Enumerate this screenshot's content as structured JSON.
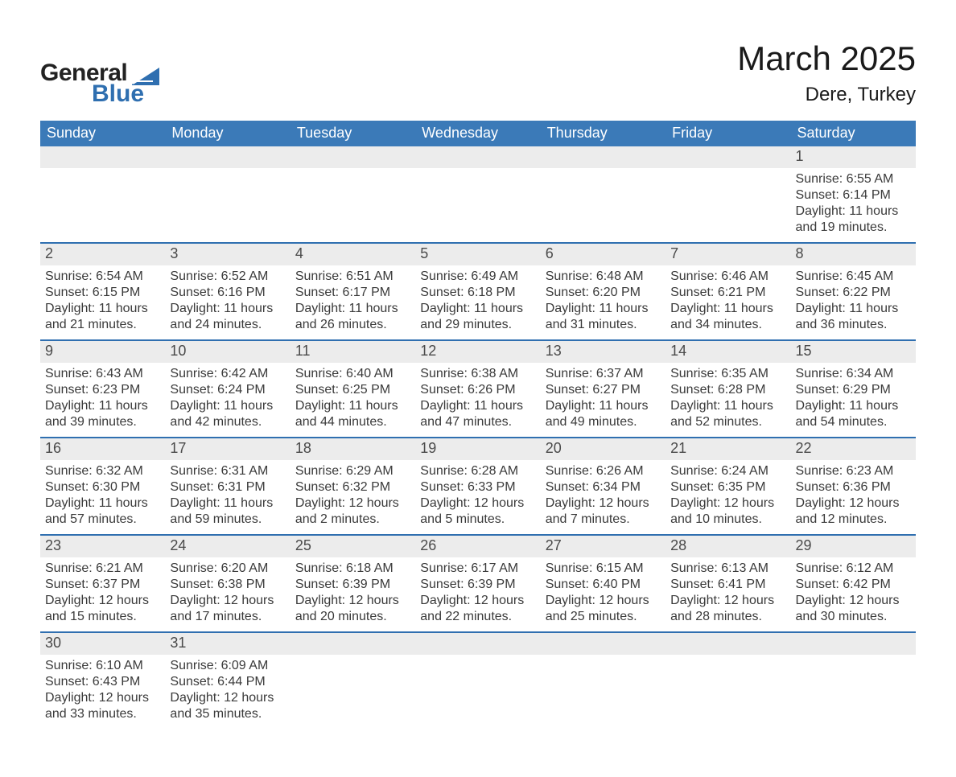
{
  "brand": {
    "word1": "General",
    "word2": "Blue",
    "accent_color": "#2f6fb0"
  },
  "title": "March 2025",
  "location": "Dere, Turkey",
  "colors": {
    "header_blue": "#3b7ab8",
    "row_separator": "#2f6fb0",
    "date_strip_bg": "#ececec",
    "background": "#ffffff",
    "text": "#2f2f2f"
  },
  "weekdays": [
    "Sunday",
    "Monday",
    "Tuesday",
    "Wednesday",
    "Thursday",
    "Friday",
    "Saturday"
  ],
  "weeks": [
    [
      null,
      null,
      null,
      null,
      null,
      null,
      {
        "d": "1",
        "sunrise": "Sunrise: 6:55 AM",
        "sunset": "Sunset: 6:14 PM",
        "dl1": "Daylight: 11 hours",
        "dl2": "and 19 minutes."
      }
    ],
    [
      {
        "d": "2",
        "sunrise": "Sunrise: 6:54 AM",
        "sunset": "Sunset: 6:15 PM",
        "dl1": "Daylight: 11 hours",
        "dl2": "and 21 minutes."
      },
      {
        "d": "3",
        "sunrise": "Sunrise: 6:52 AM",
        "sunset": "Sunset: 6:16 PM",
        "dl1": "Daylight: 11 hours",
        "dl2": "and 24 minutes."
      },
      {
        "d": "4",
        "sunrise": "Sunrise: 6:51 AM",
        "sunset": "Sunset: 6:17 PM",
        "dl1": "Daylight: 11 hours",
        "dl2": "and 26 minutes."
      },
      {
        "d": "5",
        "sunrise": "Sunrise: 6:49 AM",
        "sunset": "Sunset: 6:18 PM",
        "dl1": "Daylight: 11 hours",
        "dl2": "and 29 minutes."
      },
      {
        "d": "6",
        "sunrise": "Sunrise: 6:48 AM",
        "sunset": "Sunset: 6:20 PM",
        "dl1": "Daylight: 11 hours",
        "dl2": "and 31 minutes."
      },
      {
        "d": "7",
        "sunrise": "Sunrise: 6:46 AM",
        "sunset": "Sunset: 6:21 PM",
        "dl1": "Daylight: 11 hours",
        "dl2": "and 34 minutes."
      },
      {
        "d": "8",
        "sunrise": "Sunrise: 6:45 AM",
        "sunset": "Sunset: 6:22 PM",
        "dl1": "Daylight: 11 hours",
        "dl2": "and 36 minutes."
      }
    ],
    [
      {
        "d": "9",
        "sunrise": "Sunrise: 6:43 AM",
        "sunset": "Sunset: 6:23 PM",
        "dl1": "Daylight: 11 hours",
        "dl2": "and 39 minutes."
      },
      {
        "d": "10",
        "sunrise": "Sunrise: 6:42 AM",
        "sunset": "Sunset: 6:24 PM",
        "dl1": "Daylight: 11 hours",
        "dl2": "and 42 minutes."
      },
      {
        "d": "11",
        "sunrise": "Sunrise: 6:40 AM",
        "sunset": "Sunset: 6:25 PM",
        "dl1": "Daylight: 11 hours",
        "dl2": "and 44 minutes."
      },
      {
        "d": "12",
        "sunrise": "Sunrise: 6:38 AM",
        "sunset": "Sunset: 6:26 PM",
        "dl1": "Daylight: 11 hours",
        "dl2": "and 47 minutes."
      },
      {
        "d": "13",
        "sunrise": "Sunrise: 6:37 AM",
        "sunset": "Sunset: 6:27 PM",
        "dl1": "Daylight: 11 hours",
        "dl2": "and 49 minutes."
      },
      {
        "d": "14",
        "sunrise": "Sunrise: 6:35 AM",
        "sunset": "Sunset: 6:28 PM",
        "dl1": "Daylight: 11 hours",
        "dl2": "and 52 minutes."
      },
      {
        "d": "15",
        "sunrise": "Sunrise: 6:34 AM",
        "sunset": "Sunset: 6:29 PM",
        "dl1": "Daylight: 11 hours",
        "dl2": "and 54 minutes."
      }
    ],
    [
      {
        "d": "16",
        "sunrise": "Sunrise: 6:32 AM",
        "sunset": "Sunset: 6:30 PM",
        "dl1": "Daylight: 11 hours",
        "dl2": "and 57 minutes."
      },
      {
        "d": "17",
        "sunrise": "Sunrise: 6:31 AM",
        "sunset": "Sunset: 6:31 PM",
        "dl1": "Daylight: 11 hours",
        "dl2": "and 59 minutes."
      },
      {
        "d": "18",
        "sunrise": "Sunrise: 6:29 AM",
        "sunset": "Sunset: 6:32 PM",
        "dl1": "Daylight: 12 hours",
        "dl2": "and 2 minutes."
      },
      {
        "d": "19",
        "sunrise": "Sunrise: 6:28 AM",
        "sunset": "Sunset: 6:33 PM",
        "dl1": "Daylight: 12 hours",
        "dl2": "and 5 minutes."
      },
      {
        "d": "20",
        "sunrise": "Sunrise: 6:26 AM",
        "sunset": "Sunset: 6:34 PM",
        "dl1": "Daylight: 12 hours",
        "dl2": "and 7 minutes."
      },
      {
        "d": "21",
        "sunrise": "Sunrise: 6:24 AM",
        "sunset": "Sunset: 6:35 PM",
        "dl1": "Daylight: 12 hours",
        "dl2": "and 10 minutes."
      },
      {
        "d": "22",
        "sunrise": "Sunrise: 6:23 AM",
        "sunset": "Sunset: 6:36 PM",
        "dl1": "Daylight: 12 hours",
        "dl2": "and 12 minutes."
      }
    ],
    [
      {
        "d": "23",
        "sunrise": "Sunrise: 6:21 AM",
        "sunset": "Sunset: 6:37 PM",
        "dl1": "Daylight: 12 hours",
        "dl2": "and 15 minutes."
      },
      {
        "d": "24",
        "sunrise": "Sunrise: 6:20 AM",
        "sunset": "Sunset: 6:38 PM",
        "dl1": "Daylight: 12 hours",
        "dl2": "and 17 minutes."
      },
      {
        "d": "25",
        "sunrise": "Sunrise: 6:18 AM",
        "sunset": "Sunset: 6:39 PM",
        "dl1": "Daylight: 12 hours",
        "dl2": "and 20 minutes."
      },
      {
        "d": "26",
        "sunrise": "Sunrise: 6:17 AM",
        "sunset": "Sunset: 6:39 PM",
        "dl1": "Daylight: 12 hours",
        "dl2": "and 22 minutes."
      },
      {
        "d": "27",
        "sunrise": "Sunrise: 6:15 AM",
        "sunset": "Sunset: 6:40 PM",
        "dl1": "Daylight: 12 hours",
        "dl2": "and 25 minutes."
      },
      {
        "d": "28",
        "sunrise": "Sunrise: 6:13 AM",
        "sunset": "Sunset: 6:41 PM",
        "dl1": "Daylight: 12 hours",
        "dl2": "and 28 minutes."
      },
      {
        "d": "29",
        "sunrise": "Sunrise: 6:12 AM",
        "sunset": "Sunset: 6:42 PM",
        "dl1": "Daylight: 12 hours",
        "dl2": "and 30 minutes."
      }
    ],
    [
      {
        "d": "30",
        "sunrise": "Sunrise: 6:10 AM",
        "sunset": "Sunset: 6:43 PM",
        "dl1": "Daylight: 12 hours",
        "dl2": "and 33 minutes."
      },
      {
        "d": "31",
        "sunrise": "Sunrise: 6:09 AM",
        "sunset": "Sunset: 6:44 PM",
        "dl1": "Daylight: 12 hours",
        "dl2": "and 35 minutes."
      },
      null,
      null,
      null,
      null,
      null
    ]
  ]
}
